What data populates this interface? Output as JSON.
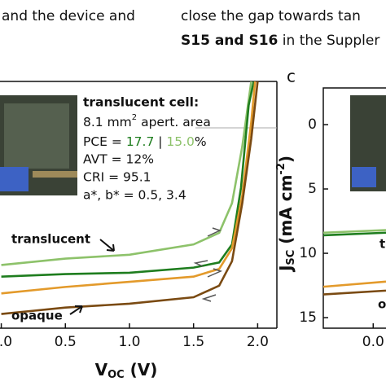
{
  "text": {
    "left_line": "and the device and",
    "right_line1": "close the gap towards tan",
    "right_line2_bold": "S15 and S16",
    "right_line2": " in the Suppler"
  },
  "panel_label": "c",
  "chart_data": [
    {
      "type": "line",
      "xlabel": {
        "main": "V",
        "sub": "OC",
        "rest": " (V)"
      },
      "xlim": [
        -0.01,
        2.15
      ],
      "ylim": [
        -3.35,
        15.8
      ],
      "y_inverted": true,
      "xticks": [
        {
          "value": 0,
          "label": "0.0"
        },
        0.5,
        {
          "value": 1,
          "label": "1.0"
        },
        1.5,
        {
          "value": 2,
          "label": "2.0"
        }
      ],
      "inset": {
        "title": "translucent cell:",
        "area": [
          "8.1 mm",
          "2",
          " apert. area"
        ],
        "pce": [
          "PCE = ",
          "17.7",
          " | ",
          "15.0",
          "%"
        ],
        "avt": "AVT = 12%",
        "cri": "CRI  = 95.1",
        "ab": "a*, b* = 0.5, 3.4"
      },
      "annotations": [
        "translucent",
        "opaque"
      ],
      "series": [
        {
          "color": "#8dc26a",
          "x": [
            0,
            0.5,
            1.0,
            1.5,
            1.7,
            1.8,
            1.88,
            1.95
          ],
          "values": [
            10.9,
            10.4,
            10.1,
            9.3,
            8.4,
            6.1,
            1.7,
            -3.35
          ]
        },
        {
          "color": "#1e7d1e",
          "x": [
            0,
            0.5,
            1.0,
            1.5,
            1.7,
            1.8,
            1.87,
            1.93,
            1.97
          ],
          "values": [
            11.8,
            11.6,
            11.5,
            11.1,
            10.7,
            9.3,
            4.9,
            -1.5,
            -3.35
          ]
        },
        {
          "color": "#e39a2b",
          "x": [
            0,
            0.5,
            1.0,
            1.5,
            1.7,
            1.8,
            1.88,
            1.95,
            1.98
          ],
          "values": [
            13.1,
            12.6,
            12.2,
            11.8,
            11.2,
            9.6,
            5.5,
            -0.2,
            -3.35
          ]
        },
        {
          "color": "#7a4a12",
          "x": [
            0,
            0.5,
            1.0,
            1.5,
            1.7,
            1.8,
            1.88,
            1.95,
            2.0
          ],
          "values": [
            14.7,
            14.2,
            13.9,
            13.4,
            12.5,
            10.6,
            6.1,
            1.1,
            -3.35
          ]
        }
      ]
    },
    {
      "type": "line",
      "ylabel": {
        "main": "J",
        "sub": "SC",
        "rest": " (mA cm",
        "sup": "-2",
        "end": ")"
      },
      "xlim": [
        -0.39,
        0.1
      ],
      "ylim": [
        -2.85,
        15.82
      ],
      "y_inverted": true,
      "xticks": [
        {
          "value": 0,
          "label": "0.0"
        }
      ],
      "yticks": [
        0,
        5,
        10,
        15
      ],
      "annotations": [
        "t",
        "o"
      ],
      "series": [
        {
          "color": "#8dc26a",
          "x": [
            -0.39,
            0.1
          ],
          "values": [
            8.4,
            8.2
          ]
        },
        {
          "color": "#1e7d1e",
          "x": [
            -0.39,
            0.1
          ],
          "values": [
            8.6,
            8.4
          ]
        },
        {
          "color": "#e39a2b",
          "x": [
            -0.39,
            0.1
          ],
          "values": [
            12.6,
            12.2
          ]
        },
        {
          "color": "#7a4a12",
          "x": [
            -0.39,
            0.1
          ],
          "values": [
            13.2,
            12.9
          ]
        }
      ]
    }
  ]
}
